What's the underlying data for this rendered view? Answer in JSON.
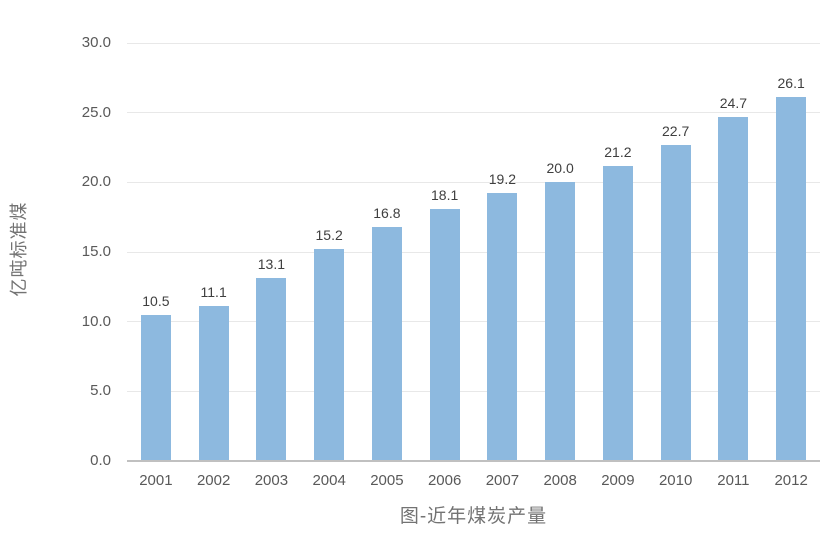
{
  "chart_data": {
    "type": "bar",
    "title": "图-近年煤炭产量",
    "ylabel": "亿吨标准煤",
    "xlabel": "",
    "categories": [
      "2001",
      "2002",
      "2003",
      "2004",
      "2005",
      "2006",
      "2007",
      "2008",
      "2009",
      "2010",
      "2011",
      "2012"
    ],
    "values": [
      10.5,
      11.1,
      13.1,
      15.2,
      16.8,
      18.1,
      19.2,
      20.0,
      21.2,
      22.7,
      24.7,
      26.1
    ],
    "data_labels": [
      "10.5",
      "11.1",
      "13.1",
      "15.2",
      "16.8",
      "18.1",
      "19.2",
      "20.0",
      "21.2",
      "22.7",
      "24.7",
      "26.1"
    ],
    "ylim": [
      0,
      30
    ],
    "yticks": [
      0,
      5,
      10,
      15,
      20,
      25,
      30
    ],
    "ytick_labels": [
      "0.0",
      "5.0",
      "10.0",
      "15.0",
      "20.0",
      "25.0",
      "30.0"
    ],
    "grid": true,
    "legend_position": "none",
    "colors": {
      "bar": "#8db9df",
      "gridline": "#e8e8e8",
      "axis_line": "#c0c0c0",
      "tick_text": "#595959",
      "data_label_text": "#3f3f3f",
      "title_text": "#737373"
    }
  }
}
